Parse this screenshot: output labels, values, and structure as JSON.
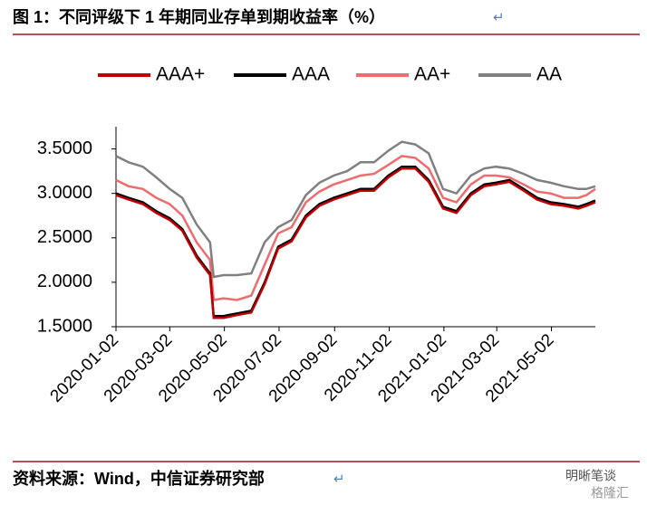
{
  "title": "图 1：不同评级下 1 年期同业存单到期收益率（%）",
  "paragraph_mark": "↵",
  "source": "资料来源：Wind，中信证券研究部",
  "watermark": [
    "明晰笔谈",
    "格隆汇"
  ],
  "chart_data": {
    "type": "line",
    "x": [
      "2020-01-02",
      "2020-01-16",
      "2020-02-01",
      "2020-02-16",
      "2020-03-02",
      "2020-03-16",
      "2020-04-01",
      "2020-04-16",
      "2020-04-20",
      "2020-05-01",
      "2020-05-16",
      "2020-06-01",
      "2020-06-16",
      "2020-07-01",
      "2020-07-16",
      "2020-08-01",
      "2020-08-16",
      "2020-09-01",
      "2020-09-16",
      "2020-10-01",
      "2020-10-16",
      "2020-11-01",
      "2020-11-16",
      "2020-12-01",
      "2020-12-16",
      "2021-01-01",
      "2021-01-16",
      "2021-02-01",
      "2021-02-16",
      "2021-03-01",
      "2021-03-16",
      "2021-04-01",
      "2021-04-16",
      "2021-05-01",
      "2021-05-16",
      "2021-06-01",
      "2021-06-10",
      "2021-06-20"
    ],
    "series": [
      {
        "name": "AAA+",
        "color": "#c00000",
        "values": [
          2.98,
          2.93,
          2.88,
          2.78,
          2.7,
          2.58,
          2.28,
          2.08,
          1.6,
          1.6,
          1.63,
          1.66,
          1.98,
          2.38,
          2.46,
          2.73,
          2.86,
          2.93,
          2.98,
          3.03,
          3.03,
          3.18,
          3.28,
          3.28,
          3.13,
          2.83,
          2.78,
          2.98,
          3.08,
          3.1,
          3.13,
          3.03,
          2.93,
          2.88,
          2.86,
          2.83,
          2.86,
          2.9
        ]
      },
      {
        "name": "AAA",
        "color": "#000000",
        "values": [
          3.0,
          2.95,
          2.9,
          2.8,
          2.72,
          2.6,
          2.3,
          2.1,
          1.62,
          1.62,
          1.65,
          1.68,
          2.0,
          2.4,
          2.48,
          2.75,
          2.88,
          2.95,
          3.0,
          3.05,
          3.05,
          3.2,
          3.3,
          3.3,
          3.15,
          2.85,
          2.8,
          3.0,
          3.1,
          3.12,
          3.15,
          3.05,
          2.95,
          2.9,
          2.88,
          2.85,
          2.88,
          2.92
        ]
      },
      {
        "name": "AA+",
        "color": "#ee6b6e",
        "values": [
          3.15,
          3.08,
          3.05,
          2.95,
          2.88,
          2.75,
          2.45,
          2.25,
          1.8,
          1.82,
          1.8,
          1.85,
          2.2,
          2.55,
          2.62,
          2.9,
          3.02,
          3.1,
          3.15,
          3.2,
          3.22,
          3.32,
          3.42,
          3.4,
          3.28,
          2.95,
          2.9,
          3.1,
          3.2,
          3.2,
          3.18,
          3.1,
          3.02,
          3.0,
          2.95,
          2.95,
          2.98,
          3.05
        ]
      },
      {
        "name": "AA",
        "color": "#808080",
        "values": [
          3.42,
          3.35,
          3.3,
          3.18,
          3.05,
          2.95,
          2.65,
          2.45,
          2.06,
          2.08,
          2.08,
          2.1,
          2.45,
          2.62,
          2.7,
          2.98,
          3.12,
          3.2,
          3.25,
          3.35,
          3.35,
          3.48,
          3.58,
          3.55,
          3.45,
          3.05,
          3.0,
          3.2,
          3.28,
          3.3,
          3.28,
          3.22,
          3.15,
          3.12,
          3.08,
          3.05,
          3.05,
          3.08
        ]
      }
    ],
    "xlim": [
      "2020-01-02",
      "2021-06-20"
    ],
    "xticks": [
      "2020-01-02",
      "2020-03-02",
      "2020-05-02",
      "2020-07-02",
      "2020-09-02",
      "2020-11-02",
      "2021-01-02",
      "2021-03-02",
      "2021-05-02"
    ],
    "ylim": [
      1.5,
      3.75
    ],
    "yticks": [
      {
        "value": 1.5,
        "label": "1.5000"
      },
      {
        "value": 2.0,
        "label": "2.0000"
      },
      {
        "value": 2.5,
        "label": "2.5000"
      },
      {
        "value": 3.0,
        "label": "3.0000"
      },
      {
        "value": 3.5,
        "label": "3.5000"
      }
    ],
    "grid": false,
    "legend": "top"
  }
}
